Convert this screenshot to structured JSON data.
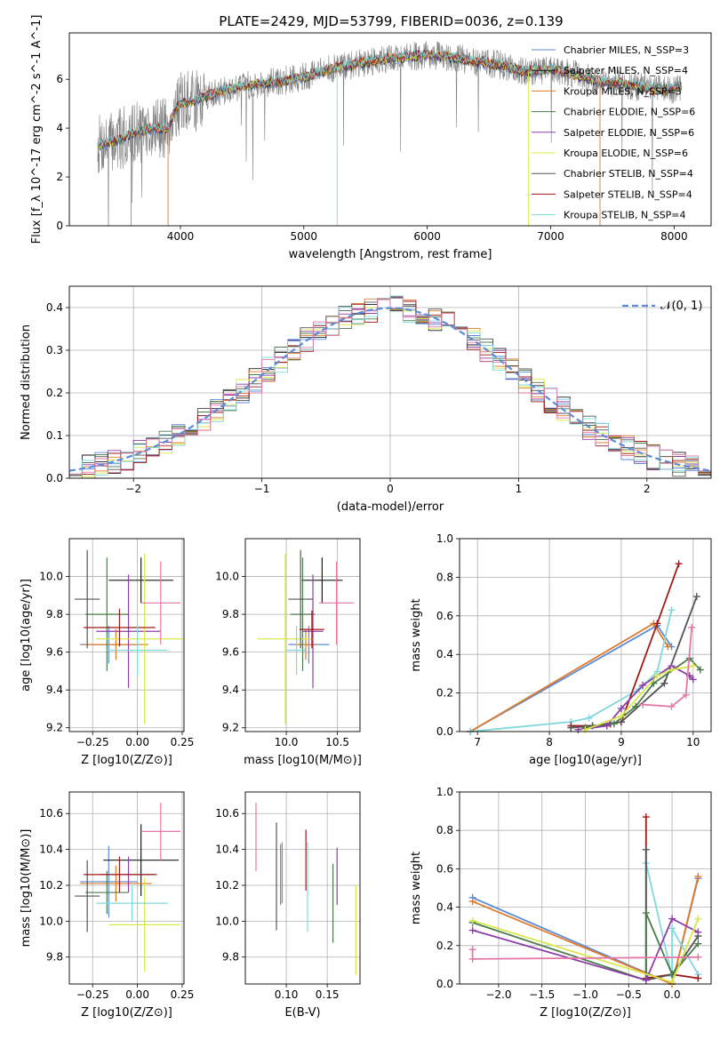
{
  "page_title": "PLATE=2429, MJD=53799, FIBERID=0036, z=0.139",
  "chart_data": [
    {
      "id": "spectrum",
      "type": "line",
      "xlabel": "wavelength [Angstrom, rest frame]",
      "ylabel": "Flux [f_λ 10^-17 erg cm^-2 s^-1 A^-1]",
      "xlim": [
        3100,
        8300
      ],
      "ylim": [
        0,
        7.9
      ],
      "xticks": [
        "4000",
        "5000",
        "6000",
        "7000",
        "8000"
      ],
      "yticks": [
        "0",
        "2",
        "4",
        "6"
      ],
      "grid": false,
      "legend_position": "top-right",
      "continuum": {
        "x": [
          3330,
          3500,
          3600,
          3700,
          3800,
          3900,
          3950,
          4000,
          4100,
          4200,
          4400,
          4600,
          4800,
          5000,
          5200,
          5400,
          5600,
          5800,
          6000,
          6200,
          6400,
          6600,
          6800,
          7000,
          7200,
          7400,
          7600,
          7800,
          8000,
          8060
        ],
        "y": [
          3.3,
          3.5,
          3.8,
          3.9,
          4.0,
          4.0,
          4.7,
          5.0,
          5.1,
          5.3,
          5.6,
          5.8,
          5.9,
          6.1,
          6.4,
          6.6,
          6.8,
          6.9,
          7.0,
          6.9,
          6.7,
          6.6,
          6.3,
          6.4,
          6.2,
          5.9,
          5.8,
          5.6,
          5.6,
          5.7
        ]
      },
      "legend": [
        {
          "label": "Chabrier MILES, N_SSP=3",
          "color": "#5b8bd9"
        },
        {
          "label": "Salpeter MILES, N_SSP=4",
          "color": "#1a1a1a"
        },
        {
          "label": "Kroupa MILES, N_SSP=3",
          "color": "#e07b2a"
        },
        {
          "label": "Chabrier ELODIE, N_SSP=6",
          "color": "#4b7a4b"
        },
        {
          "label": "Salpeter ELODIE, N_SSP=6",
          "color": "#8e3ea8"
        },
        {
          "label": "Kroupa ELODIE, N_SSP=6",
          "color": "#d8e84a"
        },
        {
          "label": "Chabrier STELIB, N_SSP=4",
          "color": "#555555"
        },
        {
          "label": "Salpeter STELIB, N_SSP=4",
          "color": "#a01818"
        },
        {
          "label": "Kroupa STELIB, N_SSP=4",
          "color": "#7fd8dd"
        }
      ]
    },
    {
      "id": "residuals",
      "type": "bar",
      "xlabel": "(data-model)/error",
      "ylabel": "Normed distribution",
      "xlim": [
        -2.5,
        2.5
      ],
      "ylim": [
        0,
        0.45
      ],
      "xticks": [
        "−2",
        "−1",
        "0",
        "1",
        "2"
      ],
      "yticks": [
        "0.0",
        "0.1",
        "0.2",
        "0.3",
        "0.4"
      ],
      "grid": true,
      "legend": [
        {
          "label": "𝒩(0, 1)",
          "color": "#5b8bd9"
        }
      ],
      "bin_width": 0.1
    },
    {
      "id": "age-vs-Z",
      "type": "scatter",
      "xlabel": "Z [log10(Z/Z⊙)]",
      "ylabel": "age [log10(age/yr)]",
      "xlim": [
        -0.38,
        0.26
      ],
      "ylim": [
        9.18,
        10.2
      ],
      "xticks": [
        "−0.25",
        "0.00",
        "0.25"
      ],
      "yticks": [
        "9.2",
        "9.4",
        "9.6",
        "9.8",
        "10.0"
      ],
      "grid": true,
      "points": [
        {
          "x": -0.16,
          "y": 9.64,
          "xerr": 0.16,
          "yerr": 0.1,
          "color": "#5b8bd9"
        },
        {
          "x": 0.02,
          "y": 9.98,
          "xerr": 0.18,
          "yerr": 0.12,
          "color": "#1a1a1a"
        },
        {
          "x": -0.12,
          "y": 9.64,
          "xerr": 0.18,
          "yerr": 0.08,
          "color": "#e07b2a"
        },
        {
          "x": -0.17,
          "y": 9.8,
          "xerr": 0.12,
          "yerr": 0.3,
          "color": "#4b7a4b"
        },
        {
          "x": -0.05,
          "y": 9.71,
          "xerr": 0.18,
          "yerr": 0.3,
          "color": "#8e3ea8"
        },
        {
          "x": 0.04,
          "y": 9.67,
          "xerr": 0.27,
          "yerr": 0.45,
          "color": "#d8e84a"
        },
        {
          "x": -0.28,
          "y": 9.88,
          "xerr": 0.07,
          "yerr": 0.26,
          "color": "#555555"
        },
        {
          "x": -0.1,
          "y": 9.73,
          "xerr": 0.2,
          "yerr": 0.1,
          "color": "#a01818"
        },
        {
          "x": 0.0,
          "y": 9.61,
          "xerr": 0.17,
          "yerr": 0.13,
          "color": "#7fd8dd"
        },
        {
          "x": 0.13,
          "y": 9.86,
          "xerr": 0.11,
          "yerr": 0.22,
          "color": "#e377a8"
        }
      ]
    },
    {
      "id": "age-vs-mass",
      "type": "scatter",
      "xlabel": "mass [log10(M/M⊙)]",
      "ylabel": "",
      "xlim": [
        9.6,
        10.72
      ],
      "ylim": [
        9.18,
        10.2
      ],
      "xticks": [
        "10.0",
        "10.5"
      ],
      "yticks": [
        "9.2",
        "9.4",
        "9.6",
        "9.8",
        "10.0"
      ],
      "grid": true,
      "points": [
        {
          "x": 10.22,
          "y": 9.64,
          "xerr": 0.2,
          "yerr": 0.1,
          "color": "#5b8bd9"
        },
        {
          "x": 10.35,
          "y": 9.98,
          "xerr": 0.2,
          "yerr": 0.12,
          "color": "#1a1a1a"
        },
        {
          "x": 10.19,
          "y": 9.64,
          "xerr": 0.1,
          "yerr": 0.08,
          "color": "#e07b2a"
        },
        {
          "x": 10.16,
          "y": 9.8,
          "xerr": 0.12,
          "yerr": 0.3,
          "color": "#4b7a4b"
        },
        {
          "x": 10.26,
          "y": 9.71,
          "xerr": 0.1,
          "yerr": 0.3,
          "color": "#8e3ea8"
        },
        {
          "x": 9.99,
          "y": 9.67,
          "xerr": 0.27,
          "yerr": 0.45,
          "color": "#d8e84a"
        },
        {
          "x": 10.14,
          "y": 9.88,
          "xerr": 0.12,
          "yerr": 0.26,
          "color": "#555555"
        },
        {
          "x": 10.25,
          "y": 9.72,
          "xerr": 0.12,
          "yerr": 0.1,
          "color": "#a01818"
        },
        {
          "x": 10.1,
          "y": 9.61,
          "xerr": 0.1,
          "yerr": 0.13,
          "color": "#7fd8dd"
        },
        {
          "x": 10.49,
          "y": 9.86,
          "xerr": 0.17,
          "yerr": 0.22,
          "color": "#e377a8"
        }
      ]
    },
    {
      "id": "massweight-vs-age",
      "type": "line",
      "xlabel": "age [log10(age/yr)]",
      "ylabel": "mass weight",
      "xlim": [
        6.75,
        10.25
      ],
      "ylim": [
        0,
        1.0
      ],
      "xticks": [
        "7",
        "8",
        "9",
        "10"
      ],
      "yticks": [
        "0.0",
        "0.2",
        "0.4",
        "0.6",
        "0.8",
        "1.0"
      ],
      "grid": true,
      "series": [
        {
          "color": "#5b8bd9",
          "x": [
            6.9,
            9.5,
            9.7
          ],
          "y": [
            0.0,
            0.55,
            0.44
          ]
        },
        {
          "color": "#e07b2a",
          "x": [
            6.9,
            9.45,
            9.65
          ],
          "y": [
            0.0,
            0.56,
            0.44
          ]
        },
        {
          "color": "#7fd8dd",
          "x": [
            6.9,
            8.3,
            8.55,
            9.25,
            9.5,
            9.7
          ],
          "y": [
            0.0,
            0.05,
            0.07,
            0.22,
            0.31,
            0.63
          ]
        },
        {
          "color": "#a01818",
          "x": [
            8.3,
            8.6,
            8.85,
            9.0,
            9.5,
            9.8
          ],
          "y": [
            0.03,
            0.03,
            0.04,
            0.05,
            0.56,
            0.87
          ]
        },
        {
          "color": "#555555",
          "x": [
            8.3,
            8.6,
            9.0,
            9.6,
            10.05
          ],
          "y": [
            0.02,
            0.03,
            0.05,
            0.25,
            0.7
          ]
        },
        {
          "color": "#4b7a4b",
          "x": [
            8.5,
            8.9,
            9.2,
            9.45,
            9.95,
            10.1
          ],
          "y": [
            0.02,
            0.04,
            0.13,
            0.25,
            0.38,
            0.32
          ]
        },
        {
          "color": "#8e3ea8",
          "x": [
            8.4,
            8.8,
            9.0,
            9.3,
            9.7,
            9.95,
            10.0
          ],
          "y": [
            0.01,
            0.03,
            0.12,
            0.24,
            0.34,
            0.29,
            0.27
          ]
        },
        {
          "color": "#d8e84a",
          "x": [
            8.5,
            9.0,
            9.5,
            9.7,
            10.0
          ],
          "y": [
            0.01,
            0.08,
            0.29,
            0.32,
            0.34
          ]
        },
        {
          "color": "#e377a8",
          "x": [
            9.3,
            9.7,
            9.9,
            9.98
          ],
          "y": [
            0.14,
            0.13,
            0.19,
            0.54
          ]
        }
      ]
    },
    {
      "id": "mass-vs-Z",
      "type": "scatter",
      "xlabel": "Z [log10(Z/Z⊙)]",
      "ylabel": "mass [log10(M/M⊙)]",
      "xlim": [
        -0.38,
        0.26
      ],
      "ylim": [
        9.65,
        10.72
      ],
      "xticks": [
        "−0.25",
        "0.00",
        "0.25"
      ],
      "yticks": [
        "9.8",
        "10.0",
        "10.2",
        "10.4",
        "10.6"
      ],
      "grid": true,
      "points": [
        {
          "x": -0.16,
          "y": 10.22,
          "xerr": 0.16,
          "yerr": 0.2,
          "color": "#5b8bd9"
        },
        {
          "x": 0.02,
          "y": 10.34,
          "xerr": 0.21,
          "yerr": 0.2,
          "color": "#1a1a1a"
        },
        {
          "x": -0.12,
          "y": 10.21,
          "xerr": 0.2,
          "yerr": 0.1,
          "color": "#e07b2a"
        },
        {
          "x": -0.17,
          "y": 10.16,
          "xerr": 0.12,
          "yerr": 0.12,
          "color": "#4b7a4b"
        },
        {
          "x": -0.05,
          "y": 10.26,
          "xerr": 0.16,
          "yerr": 0.1,
          "color": "#8e3ea8"
        },
        {
          "x": 0.04,
          "y": 9.98,
          "xerr": 0.2,
          "yerr": 0.26,
          "color": "#d8e84a"
        },
        {
          "x": -0.28,
          "y": 10.14,
          "xerr": 0.07,
          "yerr": 0.2,
          "color": "#555555"
        },
        {
          "x": -0.1,
          "y": 10.26,
          "xerr": 0.2,
          "yerr": 0.1,
          "color": "#a01818"
        },
        {
          "x": -0.03,
          "y": 10.1,
          "xerr": 0.2,
          "yerr": 0.1,
          "color": "#7fd8dd"
        },
        {
          "x": 0.13,
          "y": 10.5,
          "xerr": 0.11,
          "yerr": 0.16,
          "color": "#e377a8"
        }
      ]
    },
    {
      "id": "mass-vs-EBV",
      "type": "scatter",
      "xlabel": "E(B-V)",
      "ylabel": "",
      "xlim": [
        0.05,
        0.19
      ],
      "ylim": [
        9.65,
        10.72
      ],
      "xticks": [
        "0.10",
        "0.15"
      ],
      "yticks": [
        "9.8",
        "10.0",
        "10.2",
        "10.4",
        "10.6"
      ],
      "grid": true,
      "points": [
        {
          "x": 0.093,
          "y": 10.26,
          "yerr": 0.17,
          "color": "#5b8bd9"
        },
        {
          "x": 0.095,
          "y": 10.27,
          "yerr": 0.17,
          "color": "#e07b2a"
        },
        {
          "x": 0.088,
          "y": 10.25,
          "yerr": 0.3,
          "color": "#555555"
        },
        {
          "x": 0.124,
          "y": 10.34,
          "yerr": 0.17,
          "color": "#a01818"
        },
        {
          "x": 0.126,
          "y": 10.19,
          "yerr": 0.25,
          "color": "#7fd8dd"
        },
        {
          "x": 0.157,
          "y": 10.1,
          "yerr": 0.22,
          "color": "#4b7a4b"
        },
        {
          "x": 0.162,
          "y": 10.25,
          "yerr": 0.16,
          "color": "#8e3ea8"
        },
        {
          "x": 0.185,
          "y": 9.95,
          "yerr": 0.25,
          "color": "#d8e84a"
        },
        {
          "x": 0.063,
          "y": 10.47,
          "yerr": 0.19,
          "color": "#e377a8"
        }
      ]
    },
    {
      "id": "massweight-vs-Z",
      "type": "line",
      "xlabel": "Z [log10(Z/Z⊙)]",
      "ylabel": "mass weight",
      "xlim": [
        -2.45,
        0.45
      ],
      "ylim": [
        0,
        1.0
      ],
      "xticks": [
        "−2.0",
        "−1.5",
        "−1.0",
        "−0.5",
        "0.0"
      ],
      "yticks": [
        "0.0",
        "0.2",
        "0.4",
        "0.6",
        "0.8",
        "1.0"
      ],
      "grid": true,
      "series": [
        {
          "color": "#5b8bd9",
          "x": [
            -2.3,
            0.0,
            0.3
          ],
          "y": [
            0.45,
            0.0,
            0.55
          ]
        },
        {
          "color": "#e07b2a",
          "x": [
            -2.3,
            0.0,
            0.3
          ],
          "y": [
            0.43,
            0.0,
            0.56
          ]
        },
        {
          "color": "#7fd8dd",
          "x": [
            -0.3,
            0.0,
            0.0,
            0.3
          ],
          "y": [
            0.63,
            0.04,
            0.29,
            0.05
          ]
        },
        {
          "color": "#a01818",
          "x": [
            -0.3,
            -0.3,
            0.0,
            0.3
          ],
          "y": [
            0.87,
            0.03,
            0.05,
            0.03
          ]
        },
        {
          "color": "#555555",
          "x": [
            -0.3,
            -0.3,
            0.0,
            0.3
          ],
          "y": [
            0.7,
            0.02,
            0.05,
            0.25
          ]
        },
        {
          "color": "#4b7a4b",
          "x": [
            -2.3,
            -0.3,
            -0.3,
            0.0,
            0.3
          ],
          "y": [
            0.32,
            0.02,
            0.37,
            0.05,
            0.21
          ]
        },
        {
          "color": "#8e3ea8",
          "x": [
            -2.3,
            -0.3,
            0.0,
            0.3
          ],
          "y": [
            0.28,
            0.02,
            0.34,
            0.27
          ]
        },
        {
          "color": "#d8e84a",
          "x": [
            -2.3,
            0.0,
            0.3
          ],
          "y": [
            0.33,
            0.01,
            0.34
          ]
        },
        {
          "color": "#e377a8",
          "x": [
            -2.3,
            -2.3,
            0.3
          ],
          "y": [
            0.18,
            0.13,
            0.14
          ]
        }
      ]
    }
  ]
}
